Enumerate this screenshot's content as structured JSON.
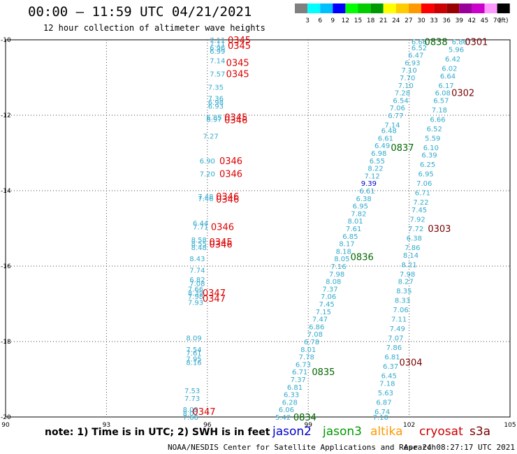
{
  "header": {
    "title": "00:00 – 11:59 UTC 04/21/2021",
    "subtitle": "12 hour collection of altimeter wave heights"
  },
  "colorbar": {
    "labels": [
      "3",
      "6",
      "9",
      "12",
      "15",
      "18",
      "21",
      "24",
      "27",
      "30",
      "33",
      "36",
      "39",
      "42",
      "45",
      "70",
      "(ft)"
    ],
    "colors": [
      "#808080",
      "#00ffff",
      "#00bfff",
      "#0000ff",
      "#00ff00",
      "#00cc00",
      "#009900",
      "#ffff00",
      "#ffcc00",
      "#ff9900",
      "#ff0000",
      "#cc0000",
      "#990000",
      "#990099",
      "#cc00cc",
      "#ff99ff",
      "#000000"
    ]
  },
  "map": {
    "lon_ticks": [
      "90",
      "93",
      "96",
      "99",
      "102",
      "105"
    ],
    "lat_ticks": [
      "-10",
      "-12",
      "-14",
      "-16",
      "-18",
      "-20"
    ],
    "lon_range": [
      90,
      105
    ],
    "lat_range": [
      -10,
      -20
    ]
  },
  "chart_data": {
    "type": "scatter",
    "x_label": "",
    "y_label": "",
    "tracks": [
      {
        "name": "cryosat-left",
        "color": "#33aacc",
        "points": [
          {
            "lon": 96.3,
            "lat": -10.0,
            "value": "7.11"
          },
          {
            "lon": 96.3,
            "lat": -10.1,
            "value": "7.11"
          },
          {
            "lon": 96.3,
            "lat": -10.2,
            "value": "6.96"
          },
          {
            "lon": 96.3,
            "lat": -10.3,
            "value": "6.99"
          },
          {
            "lon": 96.3,
            "lat": -10.55,
            "value": "7.14"
          },
          {
            "lon": 96.3,
            "lat": -10.9,
            "value": "7.57"
          },
          {
            "lon": 96.25,
            "lat": -11.25,
            "value": "7.35"
          },
          {
            "lon": 96.25,
            "lat": -11.55,
            "value": "7.36"
          },
          {
            "lon": 96.25,
            "lat": -11.65,
            "value": "6.98"
          },
          {
            "lon": 96.25,
            "lat": -11.75,
            "value": "6.93"
          },
          {
            "lon": 96.2,
            "lat": -12.05,
            "value": "6.85"
          },
          {
            "lon": 96.2,
            "lat": -12.1,
            "value": "6.97"
          },
          {
            "lon": 96.1,
            "lat": -12.55,
            "value": "7.27"
          },
          {
            "lon": 96.0,
            "lat": -13.2,
            "value": "6.90"
          },
          {
            "lon": 96.0,
            "lat": -13.55,
            "value": "7.20"
          },
          {
            "lon": 95.95,
            "lat": -14.15,
            "value": "7.48"
          },
          {
            "lon": 95.95,
            "lat": -14.2,
            "value": "7.46"
          },
          {
            "lon": 95.8,
            "lat": -14.85,
            "value": "6.44"
          },
          {
            "lon": 95.8,
            "lat": -14.95,
            "value": "7.71"
          },
          {
            "lon": 95.75,
            "lat": -15.3,
            "value": "8.58"
          },
          {
            "lon": 95.75,
            "lat": -15.4,
            "value": "8.55"
          },
          {
            "lon": 95.75,
            "lat": -15.5,
            "value": "8.48"
          },
          {
            "lon": 95.7,
            "lat": -15.8,
            "value": "8.43"
          },
          {
            "lon": 95.7,
            "lat": -16.1,
            "value": "7.74"
          },
          {
            "lon": 95.7,
            "lat": -16.35,
            "value": "6.82"
          },
          {
            "lon": 95.7,
            "lat": -16.45,
            "value": "7.08"
          },
          {
            "lon": 95.65,
            "lat": -16.6,
            "value": "7.66"
          },
          {
            "lon": 95.65,
            "lat": -16.7,
            "value": "8.39"
          },
          {
            "lon": 95.65,
            "lat": -16.8,
            "value": "7.98"
          },
          {
            "lon": 95.65,
            "lat": -16.95,
            "value": "7.93"
          },
          {
            "lon": 95.6,
            "lat": -17.9,
            "value": "8.09"
          },
          {
            "lon": 95.6,
            "lat": -18.2,
            "value": "7.54"
          },
          {
            "lon": 95.6,
            "lat": -18.3,
            "value": "7.61"
          },
          {
            "lon": 95.6,
            "lat": -18.45,
            "value": "7.95"
          },
          {
            "lon": 95.6,
            "lat": -18.55,
            "value": "8.16"
          },
          {
            "lon": 95.55,
            "lat": -19.3,
            "value": "7.53"
          },
          {
            "lon": 95.55,
            "lat": -19.5,
            "value": "7.73"
          },
          {
            "lon": 95.5,
            "lat": -19.8,
            "value": "8.09"
          },
          {
            "lon": 95.5,
            "lat": -19.9,
            "value": "8.02"
          },
          {
            "lon": 95.5,
            "lat": -20.0,
            "value": "7.66"
          }
        ]
      },
      {
        "name": "jason3-track",
        "color": "#33aacc",
        "points": [
          {
            "lon": 102.3,
            "lat": -10.05,
            "value": "6.66"
          },
          {
            "lon": 102.3,
            "lat": -10.2,
            "value": "6.52"
          },
          {
            "lon": 102.2,
            "lat": -10.4,
            "value": "6.47"
          },
          {
            "lon": 102.1,
            "lat": -10.6,
            "value": "6.93"
          },
          {
            "lon": 102.0,
            "lat": -10.8,
            "value": "7.10"
          },
          {
            "lon": 101.95,
            "lat": -11.0,
            "value": "7.70"
          },
          {
            "lon": 101.9,
            "lat": -11.2,
            "value": "7.10"
          },
          {
            "lon": 101.8,
            "lat": -11.4,
            "value": "7.28"
          },
          {
            "lon": 101.75,
            "lat": -11.6,
            "value": "6.54"
          },
          {
            "lon": 101.65,
            "lat": -11.8,
            "value": "7.06"
          },
          {
            "lon": 101.6,
            "lat": -12.0,
            "value": "6.77"
          },
          {
            "lon": 101.5,
            "lat": -12.25,
            "value": "7.14"
          },
          {
            "lon": 101.4,
            "lat": -12.4,
            "value": "6.48"
          },
          {
            "lon": 101.3,
            "lat": -12.6,
            "value": "6.61"
          },
          {
            "lon": 101.2,
            "lat": -12.8,
            "value": "6.49"
          },
          {
            "lon": 101.1,
            "lat": -13.0,
            "value": "6.98"
          },
          {
            "lon": 101.05,
            "lat": -13.2,
            "value": "6.55"
          },
          {
            "lon": 101.0,
            "lat": -13.4,
            "value": "8.22"
          },
          {
            "lon": 100.9,
            "lat": -13.6,
            "value": "7.12"
          },
          {
            "lon": 100.8,
            "lat": -13.8,
            "value": "9.39",
            "color": "#0000cc"
          },
          {
            "lon": 100.75,
            "lat": -14.0,
            "value": "6.61"
          },
          {
            "lon": 100.65,
            "lat": -14.2,
            "value": "6.38"
          },
          {
            "lon": 100.55,
            "lat": -14.4,
            "value": "6.95"
          },
          {
            "lon": 100.5,
            "lat": -14.6,
            "value": "7.82"
          },
          {
            "lon": 100.4,
            "lat": -14.8,
            "value": "8.01"
          },
          {
            "lon": 100.35,
            "lat": -15.0,
            "value": "7.61"
          },
          {
            "lon": 100.25,
            "lat": -15.2,
            "value": "6.85"
          },
          {
            "lon": 100.15,
            "lat": -15.4,
            "value": "8.17"
          },
          {
            "lon": 100.05,
            "lat": -15.6,
            "value": "8.18"
          },
          {
            "lon": 100.0,
            "lat": -15.8,
            "value": "8.05"
          },
          {
            "lon": 99.9,
            "lat": -16.0,
            "value": "7.16"
          },
          {
            "lon": 99.85,
            "lat": -16.2,
            "value": "7.98"
          },
          {
            "lon": 99.75,
            "lat": -16.4,
            "value": "8.08"
          },
          {
            "lon": 99.65,
            "lat": -16.6,
            "value": "7.37"
          },
          {
            "lon": 99.6,
            "lat": -16.8,
            "value": "7.06"
          },
          {
            "lon": 99.55,
            "lat": -17.0,
            "value": "7.45"
          },
          {
            "lon": 99.45,
            "lat": -17.2,
            "value": "7.15"
          },
          {
            "lon": 99.35,
            "lat": -17.4,
            "value": "7.47"
          },
          {
            "lon": 99.25,
            "lat": -17.6,
            "value": "6.86"
          },
          {
            "lon": 99.2,
            "lat": -17.8,
            "value": "7.08"
          },
          {
            "lon": 99.1,
            "lat": -18.0,
            "value": "6.78"
          },
          {
            "lon": 99.0,
            "lat": -18.2,
            "value": "8.01"
          },
          {
            "lon": 98.95,
            "lat": -18.4,
            "value": "7.78"
          },
          {
            "lon": 98.85,
            "lat": -18.6,
            "value": "6.73"
          },
          {
            "lon": 98.75,
            "lat": -18.8,
            "value": "6.71"
          },
          {
            "lon": 98.7,
            "lat": -19.0,
            "value": "7.37"
          },
          {
            "lon": 98.6,
            "lat": -19.2,
            "value": "6.81"
          },
          {
            "lon": 98.5,
            "lat": -19.4,
            "value": "6.33"
          },
          {
            "lon": 98.45,
            "lat": -19.6,
            "value": "6.28"
          },
          {
            "lon": 98.35,
            "lat": -19.8,
            "value": "6.06"
          },
          {
            "lon": 98.25,
            "lat": -20.0,
            "value": "5.42"
          }
        ]
      },
      {
        "name": "s3a-track",
        "color": "#33aacc",
        "points": [
          {
            "lon": 103.5,
            "lat": -10.05,
            "value": "6.86"
          },
          {
            "lon": 103.4,
            "lat": -10.25,
            "value": "5.96"
          },
          {
            "lon": 103.3,
            "lat": -10.5,
            "value": "6.42"
          },
          {
            "lon": 103.2,
            "lat": -10.75,
            "value": "6.02"
          },
          {
            "lon": 103.15,
            "lat": -10.95,
            "value": "6.64"
          },
          {
            "lon": 103.1,
            "lat": -11.2,
            "value": "6.17"
          },
          {
            "lon": 103.0,
            "lat": -11.4,
            "value": "6.08"
          },
          {
            "lon": 102.95,
            "lat": -11.6,
            "value": "6.57"
          },
          {
            "lon": 102.9,
            "lat": -11.85,
            "value": "7.18"
          },
          {
            "lon": 102.85,
            "lat": -12.1,
            "value": "6.66"
          },
          {
            "lon": 102.75,
            "lat": -12.35,
            "value": "6.52"
          },
          {
            "lon": 102.7,
            "lat": -12.6,
            "value": "5.59"
          },
          {
            "lon": 102.65,
            "lat": -12.85,
            "value": "6.10"
          },
          {
            "lon": 102.6,
            "lat": -13.05,
            "value": "6.39"
          },
          {
            "lon": 102.55,
            "lat": -13.3,
            "value": "6.25"
          },
          {
            "lon": 102.5,
            "lat": -13.55,
            "value": "6.95"
          },
          {
            "lon": 102.45,
            "lat": -13.8,
            "value": "7.06"
          },
          {
            "lon": 102.4,
            "lat": -14.05,
            "value": "6.71"
          },
          {
            "lon": 102.35,
            "lat": -14.3,
            "value": "7.22"
          },
          {
            "lon": 102.3,
            "lat": -14.5,
            "value": "7.45"
          },
          {
            "lon": 102.25,
            "lat": -14.75,
            "value": "7.92"
          },
          {
            "lon": 102.2,
            "lat": -15.0,
            "value": "7.72"
          },
          {
            "lon": 102.15,
            "lat": -15.25,
            "value": "6.38"
          },
          {
            "lon": 102.1,
            "lat": -15.5,
            "value": "7.86"
          },
          {
            "lon": 102.05,
            "lat": -15.7,
            "value": "8.14"
          },
          {
            "lon": 102.0,
            "lat": -15.95,
            "value": "8.21"
          },
          {
            "lon": 101.95,
            "lat": -16.2,
            "value": "7.98"
          },
          {
            "lon": 101.9,
            "lat": -16.4,
            "value": "8.27"
          },
          {
            "lon": 101.85,
            "lat": -16.65,
            "value": "8.35"
          },
          {
            "lon": 101.8,
            "lat": -16.9,
            "value": "8.33"
          },
          {
            "lon": 101.75,
            "lat": -17.15,
            "value": "7.06"
          },
          {
            "lon": 101.7,
            "lat": -17.4,
            "value": "7.11"
          },
          {
            "lon": 101.65,
            "lat": -17.65,
            "value": "7.49"
          },
          {
            "lon": 101.6,
            "lat": -17.9,
            "value": "7.07"
          },
          {
            "lon": 101.55,
            "lat": -18.15,
            "value": "7.86"
          },
          {
            "lon": 101.5,
            "lat": -18.4,
            "value": "6.81"
          },
          {
            "lon": 101.45,
            "lat": -18.65,
            "value": "6.37"
          },
          {
            "lon": 101.4,
            "lat": -18.9,
            "value": "6.45"
          },
          {
            "lon": 101.35,
            "lat": -19.1,
            "value": "7.18"
          },
          {
            "lon": 101.3,
            "lat": -19.35,
            "value": "5.63"
          },
          {
            "lon": 101.25,
            "lat": -19.6,
            "value": "6.87"
          },
          {
            "lon": 101.2,
            "lat": -19.85,
            "value": "6.74"
          },
          {
            "lon": 101.15,
            "lat": -20.0,
            "value": "7.10"
          }
        ]
      }
    ],
    "time_labels": [
      {
        "lon": 96.95,
        "lat": -10.0,
        "text": "0345",
        "color": "#dd0000"
      },
      {
        "lon": 96.95,
        "lat": -10.15,
        "text": "0345",
        "color": "#dd0000"
      },
      {
        "lon": 96.9,
        "lat": -10.6,
        "text": "0345",
        "color": "#dd0000"
      },
      {
        "lon": 96.9,
        "lat": -10.9,
        "text": "0345",
        "color": "#dd0000"
      },
      {
        "lon": 96.85,
        "lat": -12.05,
        "text": "0345",
        "color": "#dd0000"
      },
      {
        "lon": 96.85,
        "lat": -12.12,
        "text": "0346",
        "color": "#dd0000"
      },
      {
        "lon": 96.7,
        "lat": -13.2,
        "text": "0346",
        "color": "#dd0000"
      },
      {
        "lon": 96.7,
        "lat": -13.55,
        "text": "0346",
        "color": "#dd0000"
      },
      {
        "lon": 96.6,
        "lat": -14.15,
        "text": "0346",
        "color": "#dd0000"
      },
      {
        "lon": 96.6,
        "lat": -14.22,
        "text": "0346",
        "color": "#dd0000"
      },
      {
        "lon": 96.45,
        "lat": -14.95,
        "text": "0346",
        "color": "#dd0000"
      },
      {
        "lon": 96.4,
        "lat": -15.35,
        "text": "0345",
        "color": "#dd0000"
      },
      {
        "lon": 96.4,
        "lat": -15.42,
        "text": "0346",
        "color": "#dd0000"
      },
      {
        "lon": 96.2,
        "lat": -16.7,
        "text": "0347",
        "color": "#dd0000"
      },
      {
        "lon": 96.2,
        "lat": -16.85,
        "text": "0347",
        "color": "#dd0000"
      },
      {
        "lon": 95.9,
        "lat": -19.85,
        "text": "0347",
        "color": "#dd0000"
      },
      {
        "lon": 102.8,
        "lat": -10.05,
        "text": "0838",
        "color": "#006600"
      },
      {
        "lon": 101.8,
        "lat": -12.85,
        "text": "0837",
        "color": "#006600"
      },
      {
        "lon": 100.6,
        "lat": -15.75,
        "text": "0836",
        "color": "#006600"
      },
      {
        "lon": 99.45,
        "lat": -18.8,
        "text": "0835",
        "color": "#006600"
      },
      {
        "lon": 98.9,
        "lat": -20.0,
        "text": "0834",
        "color": "#006600"
      },
      {
        "lon": 104.0,
        "lat": -10.05,
        "text": "0301",
        "color": "#770000"
      },
      {
        "lon": 103.6,
        "lat": -11.4,
        "text": "0302",
        "color": "#770000"
      },
      {
        "lon": 102.9,
        "lat": -15.0,
        "text": "0303",
        "color": "#770000"
      },
      {
        "lon": 102.05,
        "lat": -18.55,
        "text": "0304",
        "color": "#770000"
      }
    ]
  },
  "notes": {
    "note": "note: 1) Time is in UTC; 2) SWH is in feet",
    "satellites": [
      {
        "name": "jason2",
        "color": "#0000cc"
      },
      {
        "name": "jason3",
        "color": "#009900"
      },
      {
        "name": "altika",
        "color": "#ff9900"
      },
      {
        "name": "cryosat",
        "color": "#cc0000"
      },
      {
        "name": "s3a",
        "color": "#770000"
      }
    ]
  },
  "footer": {
    "agency": "NOAA/NESDIS Center for Satellite Applications and Research",
    "generated": "Apr 24 08:27:17 UTC 2021"
  }
}
